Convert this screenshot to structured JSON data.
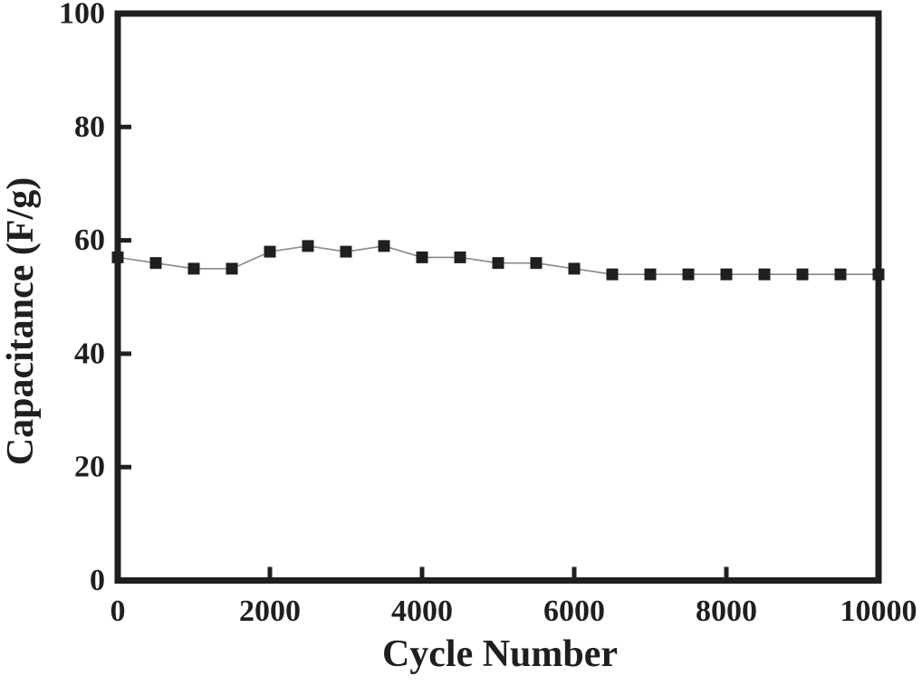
{
  "figure": {
    "background_color": "#ffffff",
    "axis_color": "#1f1f1f",
    "marker_color": "#1f1f1f",
    "line_color": "#888888"
  },
  "chart_data": {
    "type": "line",
    "title": "",
    "xlabel": "Cycle Number",
    "ylabel": "Capacitance (F/g)",
    "x": [
      0,
      500,
      1000,
      1500,
      2000,
      2500,
      3000,
      3500,
      4000,
      4500,
      5000,
      5500,
      6000,
      6500,
      7000,
      7500,
      8000,
      8500,
      9000,
      9500,
      10000
    ],
    "y": [
      57,
      56,
      55,
      55,
      58,
      59,
      58,
      59,
      57,
      57,
      56,
      56,
      55,
      54,
      54,
      54,
      54,
      54,
      54,
      54,
      54
    ],
    "series": [
      {
        "name": "capacitance",
        "marker": "filled-square",
        "line_style": "thin-solid"
      }
    ],
    "xlim": [
      0,
      10000
    ],
    "ylim": [
      0,
      100
    ],
    "xticks": [
      0,
      2000,
      4000,
      6000,
      8000,
      10000
    ],
    "yticks": [
      0,
      20,
      40,
      60,
      80,
      100
    ],
    "grid": false,
    "legend": null
  }
}
